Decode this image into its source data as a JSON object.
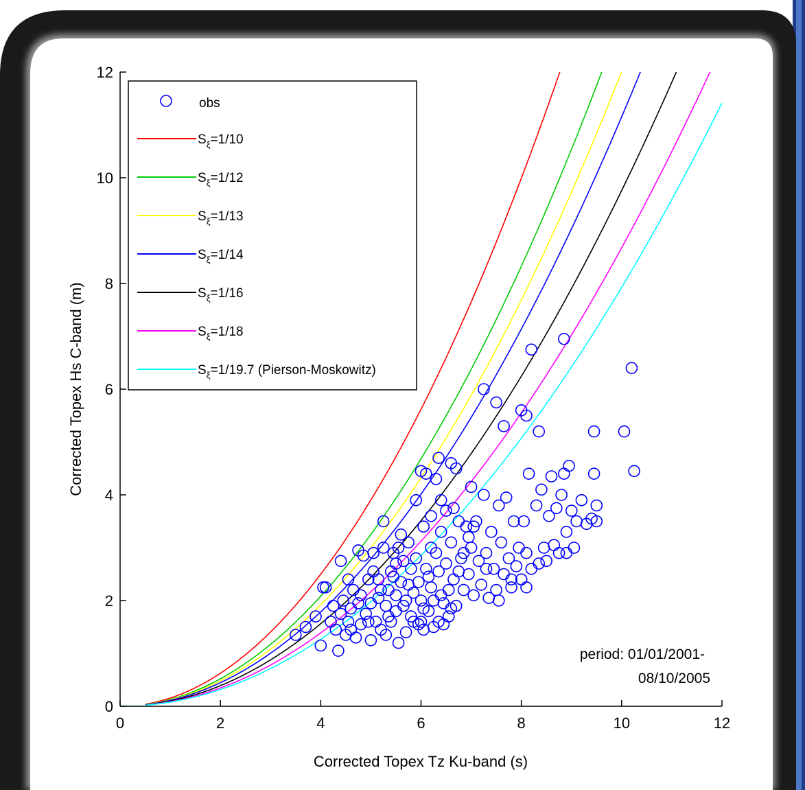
{
  "chart_data": {
    "type": "scatter",
    "xlabel": "Corrected Topex Tz Ku-band (s)",
    "ylabel": "Corrected Topex Hs C-band (m)",
    "xlim": [
      0,
      12
    ],
    "ylim": [
      0,
      12
    ],
    "xticks": [
      0,
      2,
      4,
      6,
      8,
      10,
      12
    ],
    "yticks": [
      0,
      2,
      4,
      6,
      8,
      10,
      12
    ],
    "xtick_labels": [
      "0",
      "2",
      "4",
      "6",
      "8",
      "10",
      "12"
    ],
    "ytick_labels": [
      "0",
      "2",
      "4",
      "6",
      "8",
      "10",
      "12"
    ],
    "grid": false,
    "legend_position": "top-left",
    "annotation": [
      "period: 01/01/2001-",
      "08/10/2005"
    ],
    "obs_series": {
      "name": "obs",
      "color": "#0000ff",
      "marker": "open-circle",
      "points": [
        [
          3.5,
          1.35
        ],
        [
          3.7,
          1.5
        ],
        [
          3.9,
          1.7
        ],
        [
          4.0,
          1.15
        ],
        [
          4.05,
          2.25
        ],
        [
          4.1,
          2.25
        ],
        [
          4.2,
          1.6
        ],
        [
          4.25,
          1.9
        ],
        [
          4.3,
          1.45
        ],
        [
          4.35,
          1.05
        ],
        [
          4.4,
          2.75
        ],
        [
          4.45,
          2.0
        ],
        [
          4.5,
          1.35
        ],
        [
          4.55,
          1.6
        ],
        [
          4.6,
          1.85
        ],
        [
          4.65,
          2.2
        ],
        [
          4.7,
          1.3
        ],
        [
          4.75,
          2.95
        ],
        [
          4.8,
          1.55
        ],
        [
          4.85,
          2.85
        ],
        [
          4.9,
          1.75
        ],
        [
          4.95,
          2.4
        ],
        [
          5.0,
          1.25
        ],
        [
          5.05,
          2.55
        ],
        [
          5.1,
          1.6
        ],
        [
          5.15,
          2.05
        ],
        [
          5.2,
          1.45
        ],
        [
          5.25,
          3.0
        ],
        [
          5.25,
          3.5
        ],
        [
          5.3,
          1.9
        ],
        [
          5.35,
          2.2
        ],
        [
          5.4,
          1.6
        ],
        [
          5.45,
          2.9
        ],
        [
          5.5,
          1.8
        ],
        [
          5.5,
          2.7
        ],
        [
          5.55,
          1.2
        ],
        [
          5.6,
          3.25
        ],
        [
          5.6,
          2.35
        ],
        [
          5.65,
          1.9
        ],
        [
          5.7,
          1.4
        ],
        [
          5.75,
          3.1
        ],
        [
          5.8,
          2.6
        ],
        [
          5.8,
          1.7
        ],
        [
          5.85,
          2.15
        ],
        [
          5.9,
          3.9
        ],
        [
          5.9,
          2.8
        ],
        [
          5.95,
          1.55
        ],
        [
          6.0,
          4.45
        ],
        [
          6.0,
          2.0
        ],
        [
          6.05,
          3.4
        ],
        [
          6.05,
          1.45
        ],
        [
          6.1,
          2.6
        ],
        [
          6.1,
          4.4
        ],
        [
          6.15,
          1.8
        ],
        [
          6.2,
          2.25
        ],
        [
          6.2,
          3.6
        ],
        [
          6.25,
          1.5
        ],
        [
          6.3,
          4.3
        ],
        [
          6.3,
          2.9
        ],
        [
          6.35,
          4.7
        ],
        [
          6.35,
          1.6
        ],
        [
          6.4,
          2.1
        ],
        [
          6.4,
          3.3
        ],
        [
          6.45,
          1.95
        ],
        [
          6.5,
          2.7
        ],
        [
          6.5,
          3.7
        ],
        [
          6.55,
          1.7
        ],
        [
          6.6,
          4.6
        ],
        [
          6.6,
          3.1
        ],
        [
          6.65,
          2.4
        ],
        [
          6.7,
          4.5
        ],
        [
          6.7,
          1.9
        ],
        [
          6.75,
          3.5
        ],
        [
          6.8,
          2.8
        ],
        [
          6.85,
          2.2
        ],
        [
          6.9,
          3.4
        ],
        [
          6.95,
          2.5
        ],
        [
          7.0,
          4.15
        ],
        [
          7.0,
          3.0
        ],
        [
          7.05,
          2.1
        ],
        [
          7.1,
          3.5
        ],
        [
          7.15,
          2.75
        ],
        [
          7.2,
          2.3
        ],
        [
          7.25,
          6.0
        ],
        [
          7.25,
          4.0
        ],
        [
          7.3,
          2.9
        ],
        [
          7.35,
          2.05
        ],
        [
          7.4,
          3.3
        ],
        [
          7.45,
          2.6
        ],
        [
          7.5,
          5.75
        ],
        [
          7.5,
          2.2
        ],
        [
          7.55,
          3.8
        ],
        [
          7.6,
          3.1
        ],
        [
          7.65,
          5.3
        ],
        [
          7.65,
          2.5
        ],
        [
          7.7,
          3.95
        ],
        [
          7.75,
          2.8
        ],
        [
          7.8,
          2.25
        ],
        [
          7.85,
          3.5
        ],
        [
          7.9,
          2.65
        ],
        [
          7.95,
          3.0
        ],
        [
          8.0,
          5.6
        ],
        [
          8.0,
          2.4
        ],
        [
          8.05,
          3.5
        ],
        [
          8.1,
          5.5
        ],
        [
          8.1,
          2.9
        ],
        [
          8.15,
          4.4
        ],
        [
          8.2,
          6.75
        ],
        [
          8.2,
          2.6
        ],
        [
          8.3,
          3.8
        ],
        [
          8.35,
          5.2
        ],
        [
          8.35,
          2.7
        ],
        [
          8.4,
          4.1
        ],
        [
          8.45,
          3.0
        ],
        [
          8.5,
          2.75
        ],
        [
          8.55,
          3.6
        ],
        [
          8.6,
          4.35
        ],
        [
          8.65,
          3.05
        ],
        [
          8.7,
          3.75
        ],
        [
          8.75,
          2.9
        ],
        [
          8.8,
          4.0
        ],
        [
          8.85,
          6.95
        ],
        [
          8.85,
          4.4
        ],
        [
          8.9,
          3.3
        ],
        [
          8.9,
          2.9
        ],
        [
          8.95,
          4.55
        ],
        [
          9.0,
          3.7
        ],
        [
          9.05,
          3.0
        ],
        [
          9.1,
          3.5
        ],
        [
          9.2,
          3.9
        ],
        [
          9.3,
          3.45
        ],
        [
          9.4,
          3.55
        ],
        [
          9.45,
          5.2
        ],
        [
          9.45,
          4.4
        ],
        [
          9.5,
          3.5
        ],
        [
          9.5,
          3.8
        ],
        [
          10.05,
          5.2
        ],
        [
          10.2,
          6.4
        ],
        [
          10.25,
          4.45
        ],
        [
          5.05,
          2.9
        ],
        [
          5.15,
          2.4
        ],
        [
          5.35,
          1.7
        ],
        [
          5.45,
          2.45
        ],
        [
          5.7,
          2.0
        ],
        [
          5.85,
          1.6
        ],
        [
          6.15,
          2.45
        ],
        [
          6.25,
          2.0
        ],
        [
          6.45,
          1.55
        ],
        [
          6.55,
          2.2
        ],
        [
          4.55,
          2.4
        ],
        [
          4.75,
          1.95
        ],
        [
          4.95,
          1.6
        ],
        [
          5.2,
          2.2
        ],
        [
          5.4,
          2.55
        ],
        [
          5.65,
          2.75
        ],
        [
          5.95,
          2.35
        ],
        [
          6.05,
          1.85
        ],
        [
          6.35,
          2.55
        ],
        [
          6.6,
          1.85
        ],
        [
          6.85,
          2.9
        ],
        [
          7.05,
          3.4
        ],
        [
          7.3,
          2.6
        ],
        [
          7.55,
          2.0
        ],
        [
          7.8,
          2.4
        ],
        [
          8.1,
          2.25
        ],
        [
          6.4,
          3.9
        ],
        [
          6.65,
          3.75
        ],
        [
          6.95,
          3.2
        ],
        [
          6.75,
          2.55
        ],
        [
          5.55,
          3.0
        ],
        [
          5.75,
          2.3
        ],
        [
          6.2,
          3.0
        ],
        [
          6.0,
          1.6
        ],
        [
          4.4,
          1.75
        ],
        [
          4.6,
          1.45
        ],
        [
          4.8,
          2.1
        ],
        [
          5.0,
          1.95
        ],
        [
          5.3,
          1.35
        ],
        [
          5.5,
          2.1
        ]
      ]
    },
    "series": [
      {
        "name": "S_ξ=1/10",
        "label_prefix": "S",
        "label_sub": "ξ",
        "label_suffix": "=1/10",
        "color": "#ff0000",
        "steepness": 0.1
      },
      {
        "name": "S_ξ=1/12",
        "label_prefix": "S",
        "label_sub": "ξ",
        "label_suffix": "=1/12",
        "color": "#00cc00",
        "steepness": 0.08333
      },
      {
        "name": "S_ξ=1/13",
        "label_prefix": "S",
        "label_sub": "ξ",
        "label_suffix": "=1/13",
        "color": "#ffff00",
        "steepness": 0.07692
      },
      {
        "name": "S_ξ=1/14",
        "label_prefix": "S",
        "label_sub": "ξ",
        "label_suffix": "=1/14",
        "color": "#0000ff",
        "steepness": 0.07143
      },
      {
        "name": "S_ξ=1/16",
        "label_prefix": "S",
        "label_sub": "ξ",
        "label_suffix": "=1/16",
        "color": "#000000",
        "steepness": 0.0625
      },
      {
        "name": "S_ξ=1/18",
        "label_prefix": "S",
        "label_sub": "ξ",
        "label_suffix": "=1/18",
        "color": "#ff00ff",
        "steepness": 0.05556
      },
      {
        "name": "S_ξ=1/19.7 (Pierson-Moskowitz)",
        "label_prefix": "S",
        "label_sub": "ξ",
        "label_suffix": "=1/19.7 (Pierson-Moskowitz)",
        "color": "#00ffff",
        "steepness": 0.05076
      }
    ]
  }
}
